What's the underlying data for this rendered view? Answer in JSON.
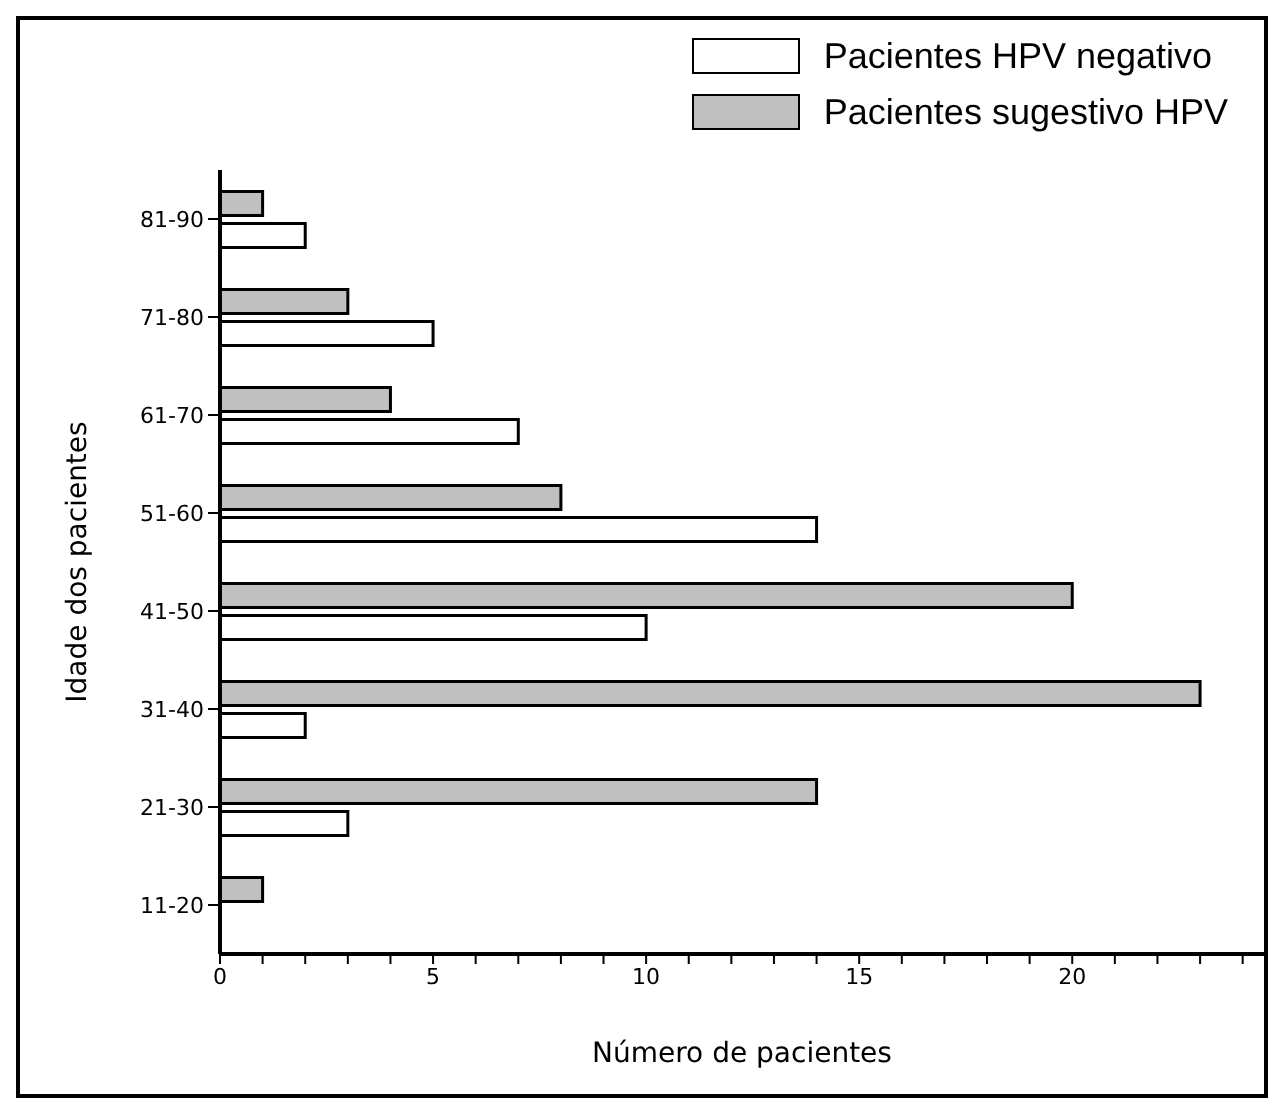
{
  "chart_data": {
    "type": "bar",
    "orientation": "horizontal",
    "xlabel": "Número de pacientes",
    "ylabel": "Idade dos pacientes",
    "categories": [
      "81-90",
      "71-80",
      "61-70",
      "51-60",
      "41-50",
      "31-40",
      "21-30",
      "11-20"
    ],
    "series": [
      {
        "name": "Pacientes HPV negativo",
        "color": "#ffffff",
        "values": [
          2,
          5,
          7,
          14,
          10,
          2,
          3,
          0
        ]
      },
      {
        "name": "Pacientes sugestivo HPV",
        "color": "#c0c0c0",
        "values": [
          1,
          3,
          4,
          8,
          20,
          23,
          14,
          1
        ]
      }
    ],
    "xlim": [
      0,
      24.5
    ],
    "xticks": [
      0,
      {
        "value": 1,
        "label": null
      },
      {
        "value": 2,
        "label": null
      },
      {
        "value": 3,
        "label": null
      },
      {
        "value": 4,
        "label": null
      },
      5,
      {
        "value": 6,
        "label": null
      },
      {
        "value": 7,
        "label": null
      },
      {
        "value": 8,
        "label": null
      },
      {
        "value": 9,
        "label": null
      },
      10,
      {
        "value": 11,
        "label": null
      },
      {
        "value": 12,
        "label": null
      },
      {
        "value": 13,
        "label": null
      },
      {
        "value": 14,
        "label": null
      },
      15,
      {
        "value": 16,
        "label": null
      },
      {
        "value": 17,
        "label": null
      },
      {
        "value": 18,
        "label": null
      },
      {
        "value": 19,
        "label": null
      },
      20,
      {
        "value": 21,
        "label": null
      },
      {
        "value": 22,
        "label": null
      },
      {
        "value": 23,
        "label": null
      },
      {
        "value": 24,
        "label": null
      }
    ],
    "legend": "top right"
  }
}
